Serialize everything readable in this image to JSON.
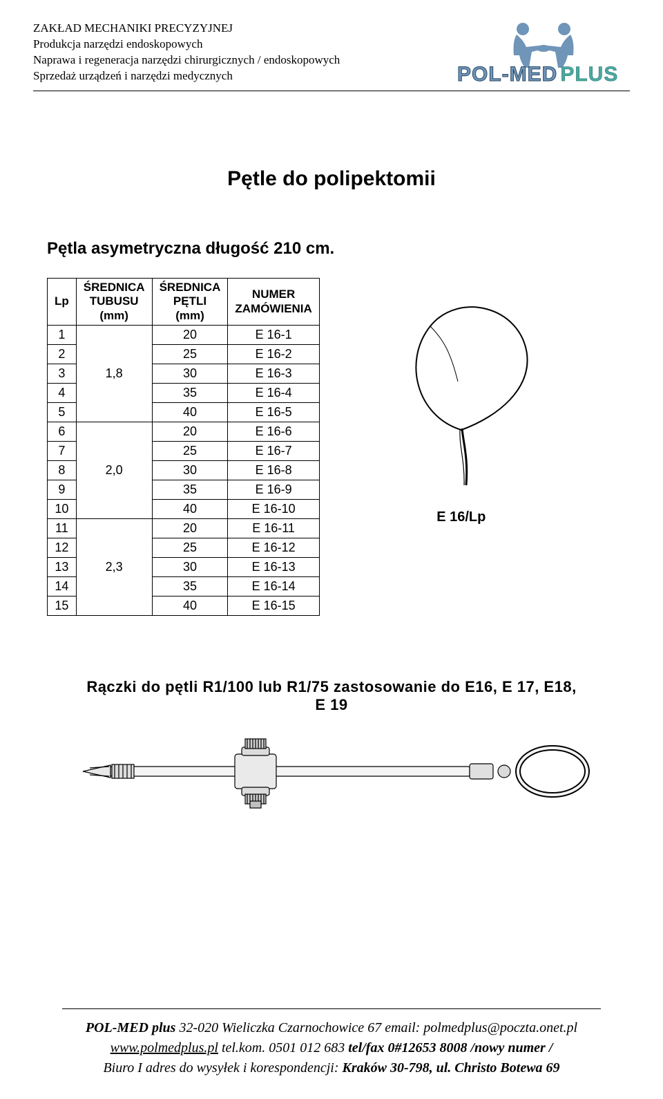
{
  "header": {
    "line1": "ZAKŁAD MECHANIKI  PRECYZYJNEJ",
    "line2": "Produkcja narzędzi endoskopowych",
    "line3": "Naprawa i regeneracja narzędzi chirurgicznych / endoskopowych",
    "line4": "Sprzedaż urządzeń i narzędzi medycznych"
  },
  "logo": {
    "pol": "POL",
    "dash": "-",
    "med": "MED",
    "plus": "PLUS",
    "people_color": "#6f95b8"
  },
  "title": "Pętle do polipektomii",
  "subtitle": "Pętla asymetryczna długość 210 cm.",
  "table": {
    "headers": {
      "lp": "Lp",
      "tubusu": "ŚREDNICA\nTUBUSU\n(mm)",
      "petli": "ŚREDNICA\nPĘTLI\n(mm)",
      "numer": "NUMER\nZAMÓWIENIA"
    },
    "groups": [
      {
        "tubusu": "1,8",
        "rows": [
          {
            "lp": "1",
            "petli": "20",
            "num": "E 16-1"
          },
          {
            "lp": "2",
            "petli": "25",
            "num": "E 16-2"
          },
          {
            "lp": "3",
            "petli": "30",
            "num": "E 16-3"
          },
          {
            "lp": "4",
            "petli": "35",
            "num": "E 16-4"
          },
          {
            "lp": "5",
            "petli": "40",
            "num": "E 16-5"
          }
        ]
      },
      {
        "tubusu": "2,0",
        "rows": [
          {
            "lp": "6",
            "petli": "20",
            "num": "E 16-6"
          },
          {
            "lp": "7",
            "petli": "25",
            "num": "E 16-7"
          },
          {
            "lp": "8",
            "petli": "30",
            "num": "E 16-8"
          },
          {
            "lp": "9",
            "petli": "35",
            "num": "E 16-9"
          },
          {
            "lp": "10",
            "petli": "40",
            "num": "E 16-10"
          }
        ]
      },
      {
        "tubusu": "2,3",
        "rows": [
          {
            "lp": "11",
            "petli": "20",
            "num": "E 16-11"
          },
          {
            "lp": "12",
            "petli": "25",
            "num": "E 16-12"
          },
          {
            "lp": "13",
            "petli": "30",
            "num": "E 16-13"
          },
          {
            "lp": "14",
            "petli": "35",
            "num": "E 16-14"
          },
          {
            "lp": "15",
            "petli": "40",
            "num": "E 16-15"
          }
        ]
      }
    ]
  },
  "figure_label": "E 16/Lp",
  "handle_title_l1": "Rączki do pętli  R1/100 lub R1/75 zastosowanie do E16, E 17, E18,",
  "handle_title_l2": "E 19",
  "footer": {
    "company": "POL-MED plus",
    "addr1": " 32-020 Wieliczka Czarnochowice 67      email: polmedplus@poczta.onet.pl",
    "web": "www.polmedplus.pl",
    "tel": "   tel.kom. 0501 012 683      ",
    "fax": "tel/fax 0#12653 8008 /nowy numer /",
    "addr2a": "Biuro I adres do wysyłek i korespondencji: ",
    "addr2b": "Kraków 30-798, ul. Christo Botewa 69"
  },
  "colors": {
    "text": "#000000",
    "logo_blue": "#6f95b8",
    "logo_teal": "#4aa9a0"
  }
}
